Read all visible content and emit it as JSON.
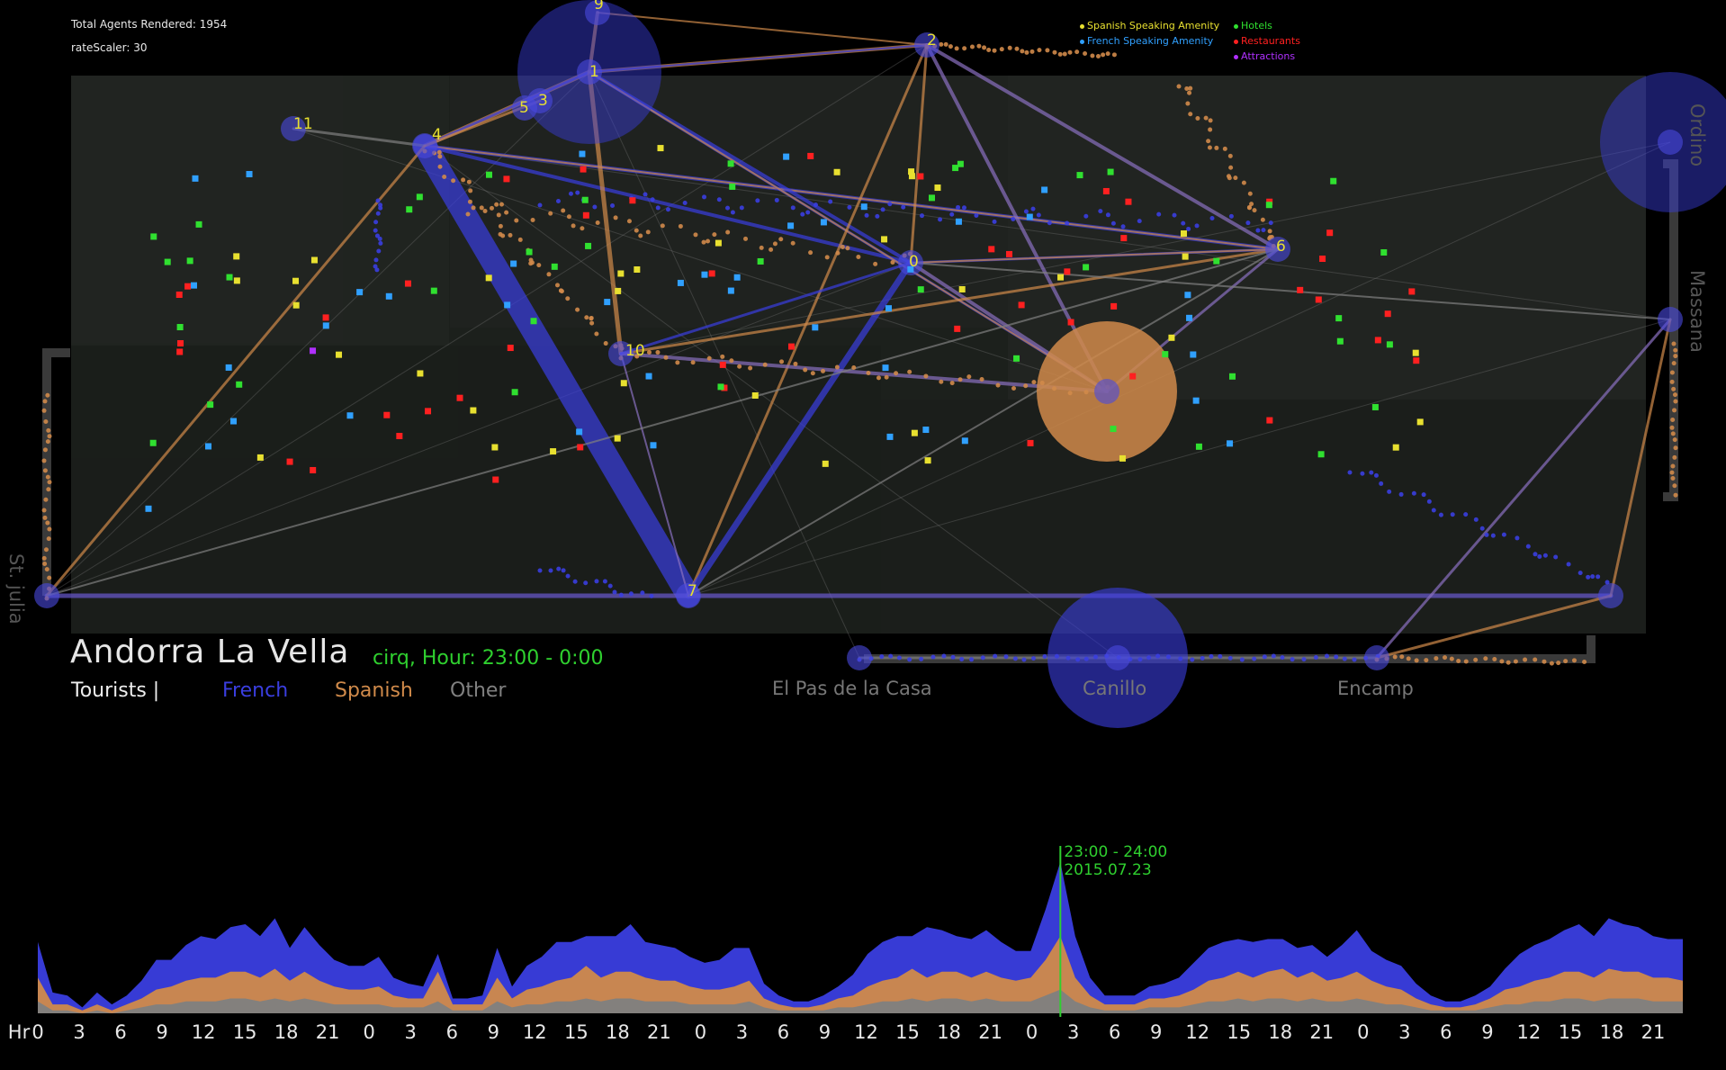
{
  "hud": {
    "agents_label": "Total Agents Rendered: 1954",
    "rate_label": "rateScaler: 30"
  },
  "legend": [
    {
      "label": "Spanish Speaking Amenity",
      "color": "#e8e030"
    },
    {
      "label": "Hotels",
      "color": "#30e030"
    },
    {
      "label": "French Speaking Amenity",
      "color": "#30a0ff"
    },
    {
      "label": "Restaurants",
      "color": "#ff2020"
    },
    {
      "label": "Attractions",
      "color": "#b030ff"
    }
  ],
  "title": "Andorra La Vella",
  "hour_label": "cirq, Hour: 23:00 - 0:00",
  "key": {
    "tourists": "Tourists |",
    "french": "French",
    "spanish": "Spanish",
    "other": "Other"
  },
  "colors": {
    "french": "#3a3ee0",
    "spanish": "#d08a4a",
    "other": "#808080",
    "map_bg": "#1c1f1c",
    "highlight": "#2fd02f"
  },
  "map_labels": [
    "11",
    "9",
    "1",
    "5",
    "3",
    "2",
    "4",
    "0",
    "6",
    "10",
    "7"
  ],
  "towns": {
    "el_pas": "El Pas de la Casa",
    "canillo": "Canillo",
    "encamp": "Encamp",
    "st_julia": "St. julia",
    "massana": "Massana",
    "ordino": "Ordino"
  },
  "timeline": {
    "hr_label": "Hr",
    "ticks": [
      "0",
      "3",
      "6",
      "9",
      "12",
      "15",
      "18",
      "21",
      "0",
      "3",
      "6",
      "9",
      "12",
      "15",
      "18",
      "21",
      "0",
      "3",
      "6",
      "9",
      "12",
      "15",
      "18",
      "21",
      "0",
      "3",
      "6",
      "9",
      "12",
      "15",
      "18",
      "21",
      "0",
      "3",
      "6",
      "9",
      "12",
      "15",
      "18",
      "21"
    ],
    "marker_time": "23:00 - 24:00",
    "marker_date": "2015.07.23",
    "chart_data": {
      "type": "area",
      "series": [
        {
          "name": "French",
          "values": [
            12,
            4,
            3,
            1,
            4,
            2,
            3,
            6,
            10,
            9,
            12,
            14,
            13,
            15,
            16,
            14,
            17,
            11,
            15,
            12,
            9,
            8,
            8,
            10,
            6,
            5,
            4,
            6,
            2,
            2,
            3,
            10,
            4,
            8,
            10,
            13,
            12,
            10,
            14,
            12,
            16,
            12,
            12,
            11,
            10,
            9,
            10,
            13,
            11,
            5,
            3,
            2,
            2,
            3,
            4,
            7,
            11,
            13,
            14,
            11,
            17,
            14,
            12,
            13,
            14,
            12,
            10,
            9,
            17,
            25,
            14,
            6,
            3,
            3,
            3,
            4,
            5,
            6,
            9,
            11,
            12,
            11,
            12,
            11,
            10,
            10,
            9,
            8,
            11,
            14,
            10,
            9,
            8,
            5,
            3,
            2,
            2,
            3,
            4,
            7,
            11,
            12,
            13,
            14,
            16,
            14,
            17,
            16,
            15,
            14,
            13,
            14
          ]
        },
        {
          "name": "Spanish",
          "values": [
            8,
            2,
            2,
            1,
            2,
            1,
            2,
            3,
            5,
            6,
            7,
            8,
            8,
            9,
            9,
            8,
            10,
            7,
            9,
            7,
            6,
            5,
            5,
            6,
            4,
            3,
            3,
            10,
            2,
            2,
            2,
            8,
            3,
            5,
            6,
            7,
            8,
            11,
            8,
            9,
            9,
            8,
            7,
            7,
            6,
            5,
            5,
            6,
            7,
            3,
            2,
            1,
            1,
            2,
            3,
            4,
            6,
            7,
            8,
            10,
            8,
            9,
            9,
            8,
            9,
            8,
            7,
            8,
            12,
            18,
            8,
            4,
            2,
            2,
            2,
            3,
            3,
            4,
            5,
            7,
            8,
            9,
            8,
            9,
            10,
            8,
            9,
            7,
            8,
            9,
            7,
            6,
            5,
            3,
            2,
            1,
            1,
            2,
            3,
            5,
            6,
            7,
            8,
            9,
            9,
            8,
            10,
            9,
            9,
            8,
            8,
            7
          ]
        },
        {
          "name": "Other",
          "values": [
            4,
            1,
            1,
            0,
            1,
            0,
            1,
            2,
            3,
            3,
            4,
            4,
            4,
            5,
            5,
            4,
            5,
            4,
            5,
            4,
            3,
            3,
            3,
            3,
            2,
            2,
            2,
            4,
            1,
            1,
            1,
            4,
            2,
            3,
            3,
            4,
            4,
            5,
            4,
            5,
            5,
            4,
            4,
            4,
            3,
            3,
            3,
            3,
            4,
            2,
            1,
            1,
            1,
            1,
            2,
            2,
            3,
            4,
            4,
            5,
            4,
            5,
            5,
            4,
            5,
            4,
            4,
            4,
            6,
            8,
            4,
            2,
            1,
            1,
            1,
            2,
            2,
            2,
            3,
            4,
            4,
            5,
            4,
            5,
            5,
            4,
            5,
            4,
            4,
            5,
            4,
            3,
            3,
            2,
            1,
            1,
            1,
            1,
            2,
            3,
            3,
            4,
            4,
            5,
            5,
            4,
            5,
            5,
            5,
            4,
            4,
            4
          ]
        }
      ],
      "highlight_index": 69
    }
  }
}
